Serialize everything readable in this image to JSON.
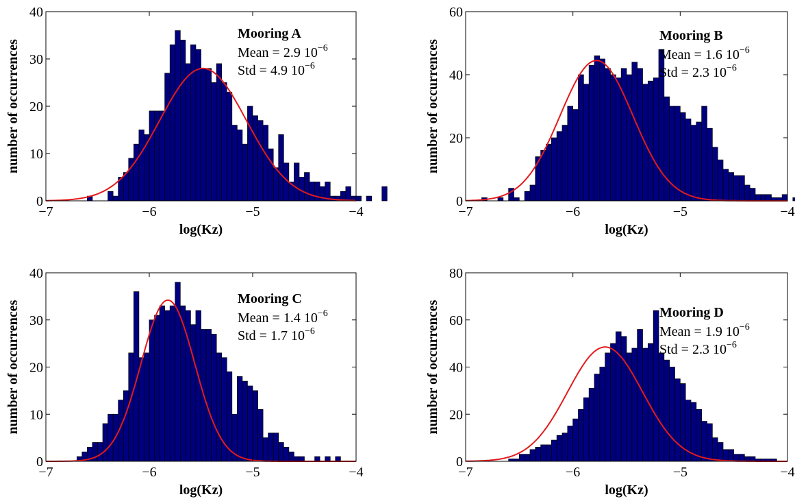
{
  "chart_data": [
    {
      "type": "bar",
      "panel": "A",
      "xlabel": "log(Kz)",
      "ylabel": "number of occurrences",
      "xlim": [
        -7,
        -4
      ],
      "ylim": [
        0,
        40
      ],
      "xticks": [
        -7,
        -6,
        -5,
        -4
      ],
      "yticks": [
        0,
        10,
        20,
        30,
        40
      ],
      "xtick_labels": [
        "−7",
        "−6",
        "−5",
        "−4"
      ],
      "ytick_labels": [
        "0",
        "10",
        "20",
        "30",
        "40"
      ],
      "bin_start": -6.6,
      "bin_width": 0.05,
      "values": [
        1,
        0,
        0,
        0,
        2,
        1,
        5,
        6,
        9,
        12,
        15,
        14,
        19,
        19,
        19,
        27,
        33,
        36,
        34,
        29,
        33,
        32,
        28,
        28,
        25,
        29,
        25,
        23,
        16,
        15,
        12,
        20,
        18,
        17,
        16,
        11,
        7,
        14,
        8,
        4,
        8,
        5,
        6,
        4,
        4,
        3,
        4,
        1,
        1,
        2,
        3,
        1,
        1,
        0,
        1,
        0,
        0,
        3,
        0,
        0
      ],
      "fit": {
        "mu": -5.48,
        "sigma": 0.42,
        "peak": 28
      },
      "annotation": {
        "title": "Mooring A",
        "mean": "Mean = 2.9 10",
        "std": "Std = 4.9 10",
        "exp": "−6"
      },
      "colors": {
        "bar": "#00007f",
        "fit": "#e31a1c"
      }
    },
    {
      "type": "bar",
      "panel": "B",
      "xlabel": "log(Kz)",
      "ylabel": "number of occurrences",
      "xlim": [
        -7,
        -4
      ],
      "ylim": [
        0,
        60
      ],
      "xticks": [
        -7,
        -6,
        -5,
        -4
      ],
      "yticks": [
        0,
        20,
        40,
        60
      ],
      "xtick_labels": [
        "−7",
        "−6",
        "−5",
        "−4"
      ],
      "ytick_labels": [
        "0",
        "20",
        "40",
        "60"
      ],
      "bin_start": -6.85,
      "bin_width": 0.05,
      "values": [
        1,
        0,
        0,
        1,
        0,
        4,
        1,
        0,
        3,
        5,
        14,
        16,
        18,
        20,
        22,
        24,
        30,
        29,
        40,
        37,
        43,
        46,
        45,
        42,
        40,
        39,
        42,
        40,
        44,
        42,
        37,
        38,
        39,
        48,
        33,
        30,
        30,
        28,
        26,
        24,
        25,
        30,
        23,
        17,
        13,
        10,
        9,
        8,
        8,
        5,
        4,
        2,
        2,
        2,
        1,
        1,
        2,
        0,
        1,
        1,
        0,
        0,
        1,
        0,
        0,
        0,
        0,
        0,
        0,
        0,
        0,
        0,
        0,
        1,
        0,
        0
      ],
      "fit": {
        "mu": -5.78,
        "sigma": 0.34,
        "peak": 44.5
      },
      "annotation": {
        "title": "Mooring B",
        "mean": "Mean = 1.6 10",
        "std": "Std = 2.3 10",
        "exp": "−6"
      },
      "colors": {
        "bar": "#00007f",
        "fit": "#e31a1c"
      }
    },
    {
      "type": "bar",
      "panel": "C",
      "xlabel": "log(Kz)",
      "ylabel": "number of occurrences",
      "xlim": [
        -7,
        -4
      ],
      "ylim": [
        0,
        40
      ],
      "xticks": [
        -7,
        -6,
        -5,
        -4
      ],
      "yticks": [
        0,
        10,
        20,
        30,
        40
      ],
      "xtick_labels": [
        "−7",
        "−6",
        "−5",
        "−4"
      ],
      "ytick_labels": [
        "0",
        "10",
        "20",
        "30",
        "40"
      ],
      "bin_start": -6.7,
      "bin_width": 0.05,
      "values": [
        1,
        2,
        3,
        4,
        4,
        8,
        10,
        10,
        13,
        15,
        23,
        36,
        22,
        23,
        30,
        31,
        33,
        32,
        33,
        38,
        33,
        32,
        29,
        32,
        28,
        28,
        27,
        23,
        22,
        19,
        10,
        18,
        17,
        16,
        15,
        11,
        5,
        6,
        6,
        4,
        3,
        2,
        1,
        1,
        0,
        0,
        1,
        0,
        1,
        0,
        1
      ],
      "fit": {
        "mu": -5.82,
        "sigma": 0.26,
        "peak": 34.2
      },
      "annotation": {
        "title": "Mooring C",
        "mean": "Mean = 1.4 10",
        "std": "Std = 1.7 10",
        "exp": "−6"
      },
      "colors": {
        "bar": "#00007f",
        "fit": "#e31a1c"
      }
    },
    {
      "type": "bar",
      "panel": "D",
      "xlabel": "log(Kz)",
      "ylabel": "number of occurrences",
      "xlim": [
        -7,
        -4
      ],
      "ylim": [
        0,
        80
      ],
      "xticks": [
        -7,
        -6,
        -5,
        -4
      ],
      "yticks": [
        0,
        20,
        40,
        60,
        80
      ],
      "xtick_labels": [
        "−7",
        "−6",
        "−5",
        "−4"
      ],
      "ytick_labels": [
        "0",
        "20",
        "40",
        "60",
        "80"
      ],
      "bin_start": -6.6,
      "bin_width": 0.05,
      "values": [
        1,
        1,
        3,
        3,
        5,
        6,
        7,
        7,
        9,
        11,
        12,
        15,
        18,
        22,
        27,
        31,
        37,
        40,
        46,
        50,
        55,
        53,
        46,
        48,
        56,
        48,
        50,
        64,
        46,
        43,
        40,
        35,
        33,
        26,
        25,
        22,
        17,
        16,
        10,
        8,
        5,
        5,
        3,
        3,
        2,
        2,
        1,
        1,
        1,
        1,
        0,
        0,
        0,
        0,
        0,
        0,
        0,
        0,
        0,
        0,
        1,
        0
      ],
      "fit": {
        "mu": -5.7,
        "sigma": 0.35,
        "peak": 48.5
      },
      "annotation": {
        "title": "Mooring D",
        "mean": "Mean = 1.9 10",
        "std": "Std = 2.3 10",
        "exp": "−6"
      },
      "colors": {
        "bar": "#00007f",
        "fit": "#e31a1c"
      }
    }
  ]
}
